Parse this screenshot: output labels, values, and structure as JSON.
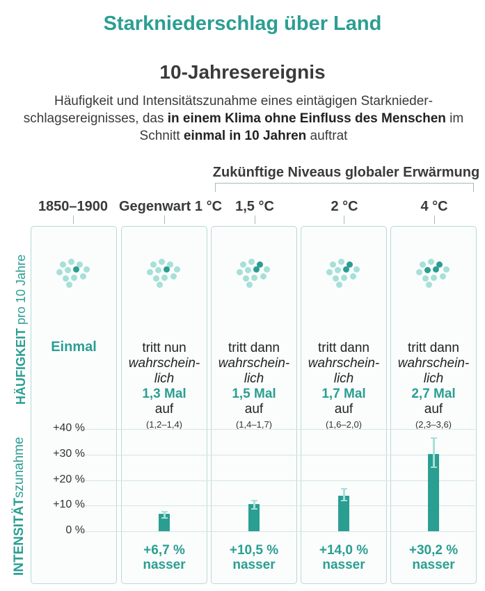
{
  "title": "Starkniederschlag über Land",
  "subtitle": "10-Jahresereignis",
  "description": {
    "p1": "Häufigkeit und Intensitätszunahme eines eintägigen Starknieder-schlagsereignisses, das ",
    "b1": "in einem Klima ohne Einfluss des Menschen",
    "p2": " im Schnitt ",
    "b2": "einmal in 10 Jahren",
    "p3": " auftrat"
  },
  "future_label": "Zukünftige Niveaus globaler Erwärmung",
  "row_labels": {
    "frequency_bold": "HÄUFIGKEIT",
    "frequency_rest": " pro 10 Jahre",
    "intensity_bold": "INTENSITÄT",
    "intensity_rest": "szunahme"
  },
  "colors": {
    "accent": "#2b9e92",
    "dot_light": "#a6e0d8",
    "dot_dark": "#2b9e92"
  },
  "columns": [
    {
      "header": "1850–1900",
      "frequency_text": "Einmal",
      "dark_dots": 1
    },
    {
      "header": "Gegenwart 1 °C",
      "line1": "tritt nun",
      "line2": "wahrschein-",
      "line3": "lich",
      "value": "1,3 Mal",
      "line5": "auf",
      "range": "(1,2–1,4)",
      "dark_dots": 1,
      "intensity_label": "+6,7 %",
      "intensity_word": "nasser"
    },
    {
      "header": "1,5 °C",
      "line1": "tritt dann",
      "line2": "wahrschein-",
      "line3": "lich",
      "value": "1,5 Mal",
      "line5": "auf",
      "range": "(1,4–1,7)",
      "dark_dots": 2,
      "intensity_label": "+10,5 %",
      "intensity_word": "nasser"
    },
    {
      "header": "2 °C",
      "line1": "tritt dann",
      "line2": "wahrschein-",
      "line3": "lich",
      "value": "1,7 Mal",
      "line5": "auf",
      "range": "(1,6–2,0)",
      "dark_dots": 2,
      "intensity_label": "+14,0 %",
      "intensity_word": "nasser"
    },
    {
      "header": "4 °C",
      "line1": "tritt dann",
      "line2": "wahrschein-",
      "line3": "lich",
      "value": "2,7 Mal",
      "line5": "auf",
      "range": "(2,3–3,6)",
      "dark_dots": 3,
      "intensity_label": "+30,2 %",
      "intensity_word": "nasser"
    }
  ],
  "chart_data": {
    "type": "bar",
    "categories": [
      "Gegenwart 1 °C",
      "1,5 °C",
      "2 °C",
      "4 °C"
    ],
    "values": [
      6.7,
      10.5,
      14.0,
      30.2
    ],
    "error_low": [
      5.2,
      8.6,
      12.0,
      25.0
    ],
    "error_high": [
      7.7,
      12.0,
      16.5,
      36.5
    ],
    "ylim": [
      0,
      40
    ],
    "yticks": [
      "0 %",
      "+10 %",
      "+20 %",
      "+30 %",
      "+40 %"
    ],
    "ytick_values": [
      0,
      10,
      20,
      30,
      40
    ],
    "ylabel": "INTENSITÄTszunahme",
    "grid": true
  }
}
